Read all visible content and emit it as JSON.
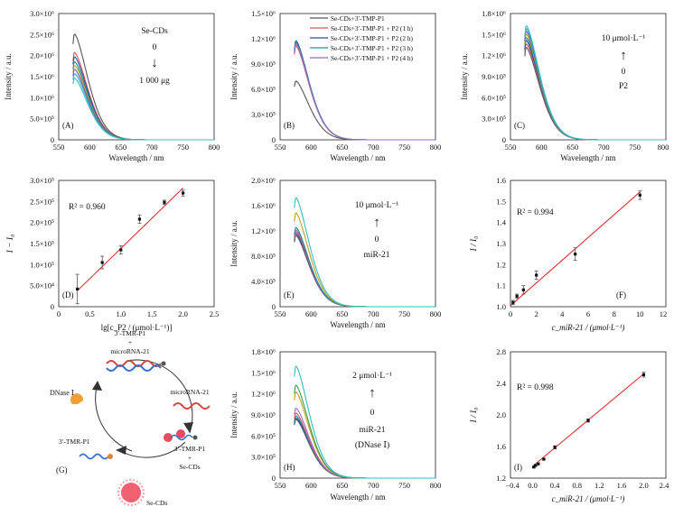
{
  "figure": {
    "panels": {
      "A": {
        "label": "(A)",
        "ylabel": "Intensity / a.u.",
        "xlabel": "Wavelength / nm",
        "y_ticks": [
          "0",
          "5.0×10⁵",
          "1.0×10⁶",
          "1.5×10⁶",
          "2.0×10⁶",
          "2.5×10⁶",
          "3.0×10⁶"
        ],
        "x_ticks": [
          "550",
          "600",
          "650",
          "700",
          "750",
          "800"
        ],
        "ann_title": "Se-CDs",
        "ann_top": "0",
        "ann_arrow": "↓",
        "ann_bottom": "1 000 μg"
      },
      "B": {
        "label": "(B)",
        "ylabel": "Intensity / a.u.",
        "xlabel": "Wavelength / nm",
        "y_ticks": [
          "0",
          "3.0×10⁵",
          "6.0×10⁵",
          "9.0×10⁵",
          "1.2×10⁶",
          "1.5×10⁶"
        ],
        "x_ticks": [
          "550",
          "600",
          "650",
          "700",
          "750",
          "800"
        ],
        "legend": [
          "Se-CDs+3′-TMP-P1",
          "Se-CDs+3′-TMP-P1 + P2 (1 h)",
          "Se-CDs+3′-TMP-P1 + P2 (2 h)",
          "Se-CDs+3′-TMP-P1 + P2 (3 h)",
          "Se-CDs+3′-TMP-P1 + P2 (4 h)"
        ]
      },
      "C": {
        "label": "(C)",
        "ylabel": "Intensity / a.u.",
        "xlabel": "Wavelength / nm",
        "y_ticks": [
          "0",
          "3.0×10⁵",
          "6.0×10⁵",
          "9.0×10⁵",
          "1.2×10⁶",
          "1.5×10⁶",
          "1.8×10⁶"
        ],
        "x_ticks": [
          "550",
          "600",
          "650",
          "700",
          "750",
          "800"
        ],
        "ann_top": "10 μmol·L⁻¹",
        "ann_arrow": "↑",
        "ann_bottom": "0",
        "ann_name": "P2"
      },
      "D": {
        "label": "(D)",
        "ylabel": "I − I₀",
        "xlabel": "lg[c_P2 / (μmol·L⁻¹)]",
        "y_ticks": [
          "0",
          "5.0×10⁴",
          "1.0×10⁵",
          "1.5×10⁵",
          "2.0×10⁵",
          "2.5×10⁵",
          "3.0×10⁵"
        ],
        "x_ticks": [
          "0",
          "0.5",
          "1.0",
          "1.5",
          "2.0",
          "2.5"
        ],
        "r2": "R² = 0.960"
      },
      "E": {
        "label": "(E)",
        "ylabel": "Intensity / a.u.",
        "xlabel": "Wavelength / nm",
        "y_ticks": [
          "0",
          "4.0×10⁵",
          "8.0×10⁵",
          "1.2×10⁶",
          "1.6×10⁶",
          "2.0×10⁶"
        ],
        "x_ticks": [
          "550",
          "600",
          "650",
          "700",
          "750",
          "800"
        ],
        "ann_top": "10 μmol·L⁻¹",
        "ann_arrow": "↑",
        "ann_bottom": "0",
        "ann_name": "miR-21"
      },
      "F": {
        "label": "(F)",
        "ylabel": "I / I₀",
        "xlabel": "c_miR-21 / (μmol·L⁻¹)",
        "y_ticks": [
          "1.0",
          "1.1",
          "1.2",
          "1.3",
          "1.4",
          "1.5",
          "1.6"
        ],
        "x_ticks": [
          "0",
          "2",
          "4",
          "6",
          "8",
          "10",
          "12"
        ],
        "r2": "R² = 0.994"
      },
      "G": {
        "label": "(G)",
        "probe_top": "3′-TMR-P1",
        "plus_top": "+",
        "mirna_top": "microRNA-21",
        "mirna_right": "microRNA-21",
        "dnase": "DNase Ⅰ",
        "probe_left": "3′-TMR-P1",
        "probe_right": "3′-TMR-P1",
        "plus_right": "+",
        "secds_right": "Se-CDs",
        "secds_bottom": "Se-CDs"
      },
      "H": {
        "label": "(H)",
        "ylabel": "Intensity / a.u.",
        "xlabel": "Wavelength / nm",
        "y_ticks": [
          "0",
          "3.0×10⁵",
          "6.0×10⁵",
          "9.0×10⁵",
          "1.2×10⁶",
          "1.5×10⁶",
          "1.8×10⁶"
        ],
        "x_ticks": [
          "550",
          "600",
          "650",
          "700",
          "750",
          "800"
        ],
        "ann_top": "2 μmol·L⁻¹",
        "ann_arrow": "↑",
        "ann_bottom": "0",
        "ann_name": "miR-21",
        "ann_name2": "(DNase Ⅰ)"
      },
      "I": {
        "label": "(I)",
        "ylabel": "I / I₀",
        "xlabel": "c_miR-21 / (μmol·L⁻¹)",
        "y_ticks": [
          "1.2",
          "1.6",
          "2.0",
          "2.4",
          "2.8"
        ],
        "x_ticks": [
          "−0.4",
          "0.0",
          "0.4",
          "0.8",
          "1.2",
          "1.6",
          "2.0",
          "2.4"
        ],
        "r2": "R² = 0.998"
      }
    }
  },
  "chart_data": [
    {
      "type": "line",
      "panel": "A",
      "xlabel": "Wavelength / nm",
      "ylabel": "Intensity / a.u.",
      "xlim": [
        550,
        800
      ],
      "ylim": [
        0,
        3000000
      ],
      "peak_wavelength": 575,
      "series": [
        {
          "color": "#555555",
          "peak": 2520000
        },
        {
          "color": "#e05060",
          "peak": 2080000
        },
        {
          "color": "#2e4f9e",
          "peak": 1980000
        },
        {
          "color": "#1a8a8a",
          "peak": 1860000
        },
        {
          "color": "#c0a020",
          "peak": 1770000
        },
        {
          "color": "#7060b0",
          "peak": 1680000
        },
        {
          "color": "#3c9ad0",
          "peak": 1580000
        },
        {
          "color": "#30c0c0",
          "peak": 1470000
        }
      ]
    },
    {
      "type": "line",
      "panel": "B",
      "xlabel": "Wavelength / nm",
      "ylabel": "Intensity / a.u.",
      "xlim": [
        550,
        800
      ],
      "ylim": [
        0,
        1500000
      ],
      "peak_wavelength": 575,
      "series": [
        {
          "name": "Se-CDs+3′-TMP-P1",
          "color": "#555555",
          "peak": 700000
        },
        {
          "name": "Se-CDs+3′-TMP-P1 + P2 (1 h)",
          "color": "#e05060",
          "peak": 1120000
        },
        {
          "name": "Se-CDs+3′-TMP-P1 + P2 (2 h)",
          "color": "#2e4f9e",
          "peak": 1180000
        },
        {
          "name": "Se-CDs+3′-TMP-P1 + P2 (3 h)",
          "color": "#1a9a9a",
          "peak": 1160000
        },
        {
          "name": "Se-CDs+3′-TMP-P1 + P2 (4 h)",
          "color": "#9b6bc0",
          "peak": 1140000
        }
      ]
    },
    {
      "type": "line",
      "panel": "C",
      "xlabel": "Wavelength / nm",
      "ylabel": "Intensity / a.u.",
      "xlim": [
        550,
        800
      ],
      "ylim": [
        0,
        1800000
      ],
      "peak_wavelength": 575,
      "series": [
        {
          "color": "#555555",
          "peak": 1320000
        },
        {
          "color": "#e05060",
          "peak": 1370000
        },
        {
          "color": "#2e4f9e",
          "peak": 1420000
        },
        {
          "color": "#1a8a8a",
          "peak": 1460000
        },
        {
          "color": "#c0a020",
          "peak": 1510000
        },
        {
          "color": "#7060b0",
          "peak": 1550000
        },
        {
          "color": "#3c9ad0",
          "peak": 1590000
        },
        {
          "color": "#30c0c0",
          "peak": 1630000
        }
      ]
    },
    {
      "type": "scatter",
      "panel": "D",
      "xlabel": "lg[c_P2 / (μmol·L⁻¹)]",
      "ylabel": "I − I₀",
      "xlim": [
        0,
        2.5
      ],
      "ylim": [
        0,
        300000
      ],
      "x": [
        0.3,
        0.7,
        1.0,
        1.3,
        1.7,
        2.0
      ],
      "y": [
        42000,
        105000,
        135000,
        208000,
        248000,
        270000
      ],
      "error": [
        35000,
        15000,
        10000,
        10000,
        5000,
        7000
      ],
      "fit": {
        "x": [
          0.3,
          2.0
        ],
        "y": [
          38000,
          282000
        ],
        "r2": 0.96
      }
    },
    {
      "type": "line",
      "panel": "E",
      "xlabel": "Wavelength / nm",
      "ylabel": "Intensity / a.u.",
      "xlim": [
        550,
        800
      ],
      "ylim": [
        0,
        2000000
      ],
      "peak_wavelength": 575,
      "series": [
        {
          "color": "#555555",
          "peak": 1130000
        },
        {
          "color": "#2e4f9e",
          "peak": 1160000
        },
        {
          "color": "#e05060",
          "peak": 1190000
        },
        {
          "color": "#9b6bc0",
          "peak": 1220000
        },
        {
          "color": "#1a8a8a",
          "peak": 1260000
        },
        {
          "color": "#c0a020",
          "peak": 1490000
        },
        {
          "color": "#30c0c0",
          "peak": 1730000
        }
      ]
    },
    {
      "type": "scatter",
      "panel": "F",
      "xlabel": "c_miR-21 / (μmol·L⁻¹)",
      "ylabel": "I / I₀",
      "xlim": [
        0,
        12
      ],
      "ylim": [
        1.0,
        1.6
      ],
      "x": [
        0.2,
        0.5,
        1.0,
        2.0,
        5.0,
        10.0
      ],
      "y": [
        1.02,
        1.05,
        1.08,
        1.15,
        1.25,
        1.53
      ],
      "error": [
        0.01,
        0.01,
        0.02,
        0.02,
        0.03,
        0.02
      ],
      "fit": {
        "x": [
          0,
          10
        ],
        "y": [
          1.005,
          1.545
        ],
        "r2": 0.994
      }
    },
    {
      "type": "line",
      "panel": "H",
      "xlabel": "Wavelength / nm",
      "ylabel": "Intensity / a.u.",
      "xlim": [
        550,
        800
      ],
      "ylim": [
        0,
        1800000
      ],
      "peak_wavelength": 575,
      "series": [
        {
          "color": "#555555",
          "peak": 840000
        },
        {
          "color": "#2e4f9e",
          "peak": 860000
        },
        {
          "color": "#1a8a8a",
          "peak": 890000
        },
        {
          "color": "#e05060",
          "peak": 930000
        },
        {
          "color": "#9b6bc0",
          "peak": 1000000
        },
        {
          "color": "#c0a020",
          "peak": 1230000
        },
        {
          "color": "#3c9a50",
          "peak": 1330000
        },
        {
          "color": "#30c0c0",
          "peak": 1600000
        }
      ]
    },
    {
      "type": "scatter",
      "panel": "I",
      "xlabel": "c_miR-21 / (μmol·L⁻¹)",
      "ylabel": "I / I₀",
      "xlim": [
        -0.4,
        2.4
      ],
      "ylim": [
        1.2,
        2.8
      ],
      "x": [
        0.02,
        0.05,
        0.1,
        0.2,
        0.4,
        1.0,
        2.0
      ],
      "y": [
        1.34,
        1.36,
        1.38,
        1.44,
        1.59,
        1.93,
        2.51
      ],
      "error": [
        0.01,
        0.01,
        0.01,
        0.01,
        0.02,
        0.02,
        0.03
      ],
      "fit": {
        "x": [
          0,
          2.0
        ],
        "y": [
          1.35,
          2.52
        ],
        "r2": 0.998
      }
    }
  ]
}
